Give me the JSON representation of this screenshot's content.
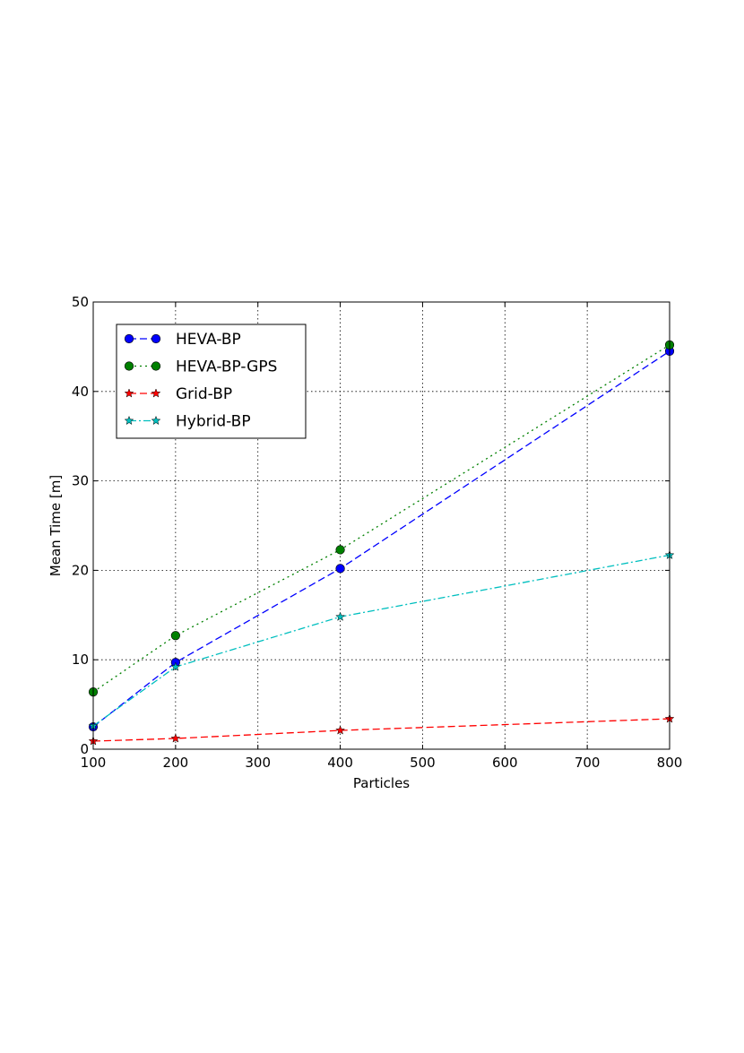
{
  "chart_data": {
    "type": "line",
    "title": "",
    "xlabel": "Particles",
    "ylabel": "Mean Time [m]",
    "xlim": [
      100,
      800
    ],
    "ylim": [
      0,
      50
    ],
    "xticks": [
      100,
      200,
      300,
      400,
      500,
      600,
      700,
      800
    ],
    "yticks": [
      0,
      10,
      20,
      30,
      40,
      50
    ],
    "grid": true,
    "legend_position": "top-left",
    "series": [
      {
        "name": "HEVA-BP",
        "x": [
          100,
          200,
          400,
          800
        ],
        "values": [
          2.5,
          9.7,
          20.2,
          44.5
        ],
        "color": "#0000ff",
        "linestyle": "dashed",
        "marker": "circle"
      },
      {
        "name": "HEVA-BP-GPS",
        "x": [
          100,
          200,
          400,
          800
        ],
        "values": [
          6.4,
          12.7,
          22.3,
          45.2
        ],
        "color": "#008000",
        "linestyle": "dotted",
        "marker": "circle"
      },
      {
        "name": "Grid-BP",
        "x": [
          100,
          200,
          400,
          800
        ],
        "values": [
          0.9,
          1.2,
          2.1,
          3.4
        ],
        "color": "#ff0000",
        "linestyle": "dashed",
        "marker": "star"
      },
      {
        "name": "Hybrid-BP",
        "x": [
          100,
          200,
          400,
          800
        ],
        "values": [
          2.6,
          9.2,
          14.8,
          21.7
        ],
        "color": "#00bfbf",
        "linestyle": "dashdot",
        "marker": "star"
      }
    ]
  }
}
